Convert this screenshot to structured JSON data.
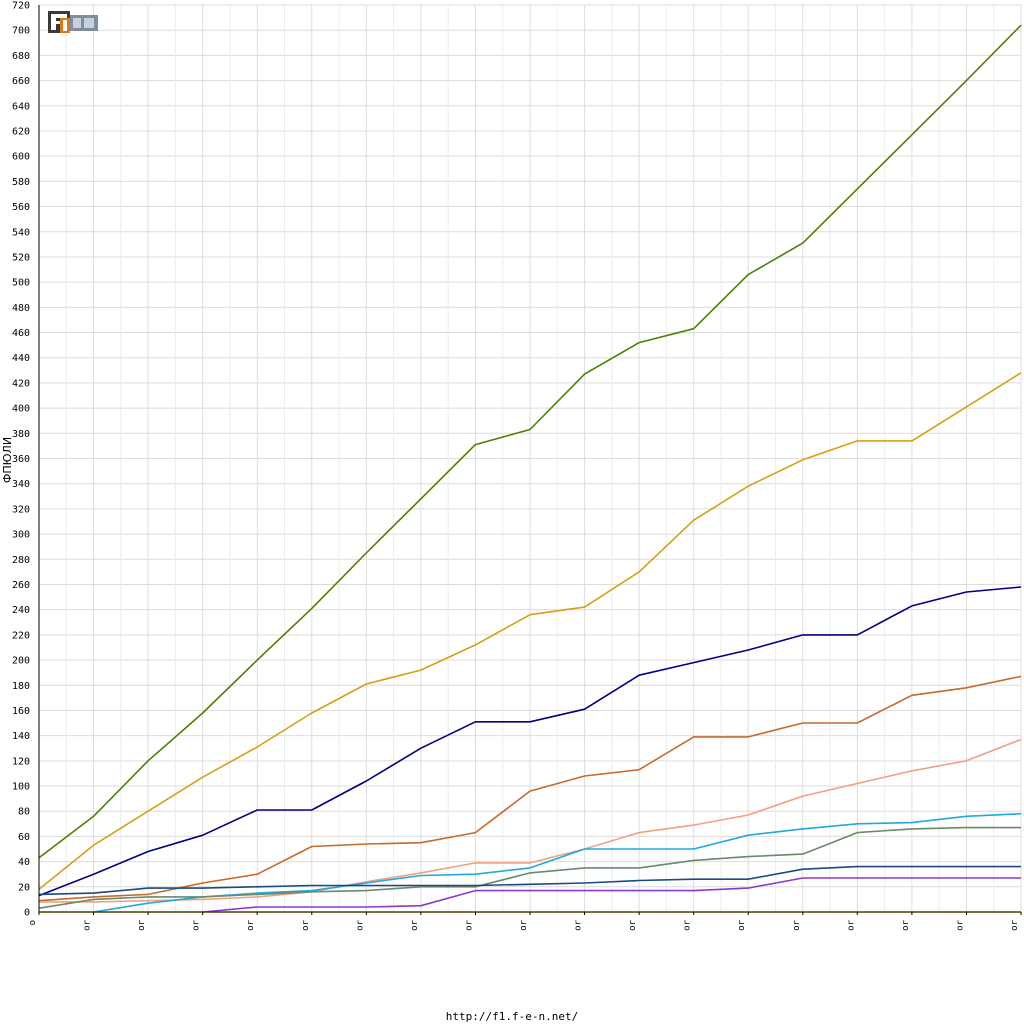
{
  "footer": {
    "url": "http://f1.f-e-n.net/"
  },
  "logo": {
    "text": "F1EN"
  },
  "chart_data": {
    "type": "line",
    "title": "",
    "xlabel": "",
    "ylabel": "ФПЮЛИ",
    "ylim": [
      0,
      720
    ],
    "y_ticks": [
      0,
      20,
      40,
      60,
      80,
      100,
      120,
      140,
      160,
      180,
      200,
      220,
      240,
      260,
      280,
      300,
      320,
      340,
      360,
      380,
      400,
      420,
      440,
      460,
      480,
      500,
      520,
      540,
      560,
      580,
      600,
      620,
      640,
      660,
      680,
      700,
      720
    ],
    "categories": [
      "o",
      "or",
      "or",
      "or",
      "or",
      "or",
      "or",
      "or",
      "or",
      "or",
      "or",
      "or",
      "or",
      "or",
      "or",
      "or",
      "or",
      "or",
      "or"
    ],
    "grid": true,
    "legend": "none",
    "series": [
      {
        "color": "#4d8000",
        "values": [
          43,
          76,
          120,
          158,
          200,
          241,
          285,
          328,
          371,
          383,
          427,
          452,
          463,
          506,
          531,
          574,
          617,
          660,
          704
        ]
      },
      {
        "color": "#d4a017",
        "values": [
          18,
          53,
          80,
          107,
          131,
          158,
          181,
          192,
          212,
          236,
          242,
          270,
          311,
          338,
          359,
          374,
          374,
          401,
          428
        ]
      },
      {
        "color": "#000080",
        "values": [
          13,
          30,
          48,
          61,
          81,
          81,
          104,
          130,
          151,
          151,
          161,
          188,
          198,
          208,
          220,
          220,
          243,
          254,
          258
        ]
      },
      {
        "color": "#c86a28",
        "values": [
          9,
          12,
          14,
          23,
          30,
          52,
          54,
          55,
          63,
          96,
          108,
          113,
          139,
          139,
          150,
          150,
          172,
          178,
          187
        ]
      },
      {
        "color": "#f0a080",
        "values": [
          8,
          8,
          9,
          10,
          12,
          16,
          24,
          31,
          39,
          39,
          50,
          63,
          69,
          77,
          92,
          102,
          112,
          120,
          137
        ]
      },
      {
        "color": "#20a8e0",
        "values": [
          null,
          0,
          7,
          12,
          15,
          17,
          23,
          29,
          30,
          35,
          50,
          50,
          50,
          61,
          66,
          70,
          71,
          76,
          78
        ]
      },
      {
        "color": "#6a8a6a",
        "values": [
          3,
          10,
          12,
          12,
          14,
          16,
          17,
          20,
          20,
          31,
          35,
          35,
          41,
          44,
          46,
          63,
          66,
          67,
          67
        ]
      },
      {
        "color": "#1a4a80",
        "values": [
          14,
          15,
          19,
          19,
          20,
          21,
          21,
          21,
          21,
          22,
          23,
          25,
          26,
          26,
          34,
          36,
          36,
          36,
          36
        ]
      },
      {
        "color": "#8a3ad0",
        "values": [
          null,
          null,
          null,
          0,
          4,
          4,
          4,
          5,
          17,
          17,
          17,
          17,
          17,
          19,
          27,
          27,
          27,
          27,
          27
        ]
      },
      {
        "color": "#e8c000",
        "values": [
          0,
          0,
          0,
          0,
          0,
          0,
          0,
          0,
          0,
          0,
          0,
          0,
          0,
          0,
          0,
          0,
          0,
          0,
          0
        ]
      }
    ]
  }
}
